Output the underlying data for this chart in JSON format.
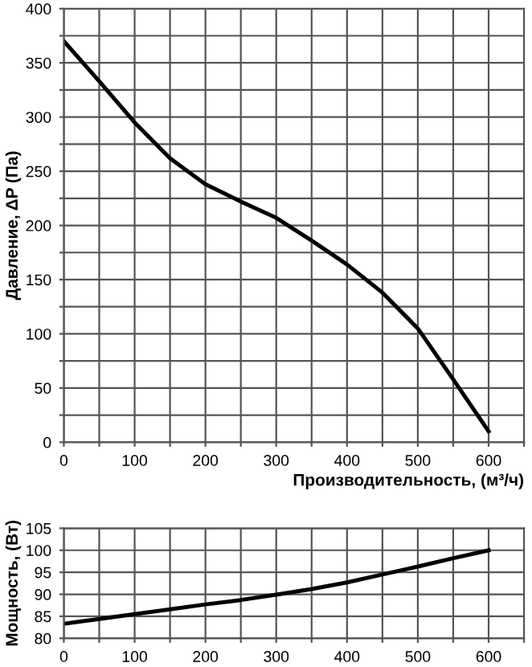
{
  "chart_data": [
    {
      "type": "line",
      "xlabel": "Производительность, (м³/ч)",
      "ylabel": "Давление, ΔP (Па)",
      "x": [
        0,
        50,
        100,
        150,
        200,
        250,
        300,
        350,
        400,
        450,
        500,
        550,
        600
      ],
      "series": [
        {
          "color": "#000000",
          "values": [
            370,
            333,
            295,
            262,
            238,
            222,
            207,
            186,
            164,
            138,
            105,
            58,
            10
          ]
        }
      ],
      "xlim": [
        0,
        650
      ],
      "ylim": [
        0,
        400
      ],
      "xticks": [
        0,
        {
          "value": 50,
          "label": null
        },
        100,
        {
          "value": 150,
          "label": null
        },
        200,
        {
          "value": 250,
          "label": null
        },
        300,
        {
          "value": 350,
          "label": null
        },
        400,
        {
          "value": 450,
          "label": null
        },
        500,
        {
          "value": 550,
          "label": null
        },
        600,
        {
          "value": 650,
          "label": null
        }
      ],
      "yticks": [
        0,
        {
          "value": 25,
          "label": null
        },
        50,
        {
          "value": 75,
          "label": null
        },
        100,
        {
          "value": 125,
          "label": null
        },
        150,
        {
          "value": 175,
          "label": null
        },
        200,
        {
          "value": 225,
          "label": null
        },
        250,
        {
          "value": 275,
          "label": null
        },
        300,
        {
          "value": 325,
          "label": null
        },
        350,
        {
          "value": 375,
          "label": null
        },
        400
      ],
      "grid": true,
      "marker": "none",
      "line_style": "solid"
    },
    {
      "type": "line",
      "ylabel": "Мощность, (Вт)",
      "x": [
        0,
        50,
        100,
        150,
        200,
        250,
        300,
        350,
        400,
        450,
        500,
        550,
        600
      ],
      "series": [
        {
          "color": "#000000",
          "values": [
            83.3,
            84.4,
            85.5,
            86.6,
            87.7,
            88.7,
            89.9,
            91.2,
            92.7,
            94.5,
            96.3,
            98.2,
            100
          ]
        }
      ],
      "xlim": [
        0,
        650
      ],
      "ylim": [
        80,
        105
      ],
      "xticks": [
        0,
        {
          "value": 50,
          "label": null
        },
        100,
        {
          "value": 150,
          "label": null
        },
        200,
        {
          "value": 250,
          "label": null
        },
        300,
        {
          "value": 350,
          "label": null
        },
        400,
        {
          "value": 450,
          "label": null
        },
        500,
        {
          "value": 550,
          "label": null
        },
        600,
        {
          "value": 650,
          "label": null
        }
      ],
      "yticks": [
        80,
        85,
        90,
        95,
        100,
        105
      ],
      "grid": true,
      "marker": "none",
      "line_style": "solid"
    }
  ]
}
